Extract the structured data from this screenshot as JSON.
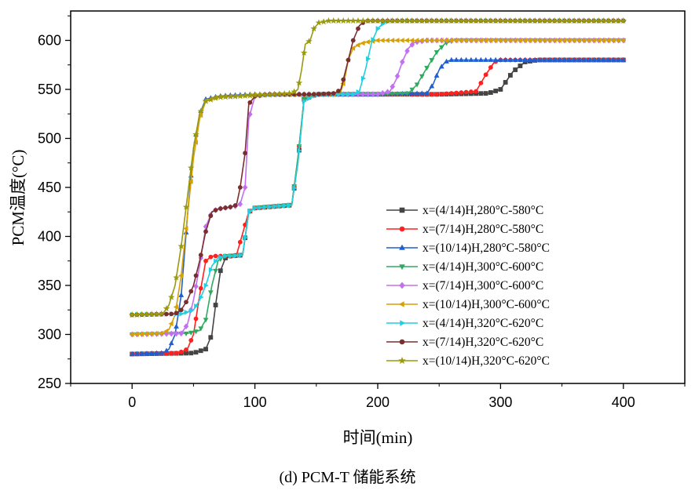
{
  "caption": "(d) PCM-T 储能系统",
  "chart_data": {
    "type": "line",
    "xlabel": "时间(min)",
    "ylabel": "PCM温度(°C)",
    "xlim": [
      -50,
      450
    ],
    "ylim": [
      250,
      630
    ],
    "xticks": [
      0,
      100,
      200,
      300,
      400
    ],
    "yticks": [
      250,
      300,
      350,
      400,
      450,
      500,
      550,
      600
    ],
    "grid": false,
    "legend_position": "lower-right",
    "series": [
      {
        "name": "x=(4/14)H,280°C-580°C",
        "color": "#444444",
        "marker": "square",
        "x": [
          0,
          50,
          60,
          65,
          68,
          72,
          76,
          80,
          90,
          95,
          100,
          110,
          130,
          135,
          140,
          150,
          200,
          250,
          290,
          300,
          310,
          320,
          330,
          400
        ],
        "y": [
          280,
          281,
          285,
          300,
          330,
          365,
          378,
          380,
          381,
          425,
          429,
          430,
          432,
          475,
          540,
          545,
          545,
          545,
          546,
          550,
          568,
          578,
          580,
          580
        ]
      },
      {
        "name": "x=(7/14)H,280°C-580°C",
        "color": "#ff2020",
        "marker": "circle",
        "x": [
          0,
          38,
          45,
          50,
          55,
          60,
          65,
          80,
          85,
          95,
          100,
          110,
          130,
          135,
          140,
          150,
          200,
          250,
          280,
          288,
          295,
          300,
          400
        ],
        "y": [
          280,
          281,
          285,
          300,
          340,
          375,
          380,
          380,
          381,
          425,
          429,
          430,
          432,
          480,
          540,
          545,
          545,
          545,
          548,
          565,
          578,
          580,
          580
        ]
      },
      {
        "name": "x=(10/14)H,280°C-580°C",
        "color": "#1f5fd0",
        "marker": "triangle-up",
        "x": [
          0,
          25,
          30,
          35,
          40,
          45,
          50,
          55,
          60,
          70,
          80,
          100,
          200,
          240,
          245,
          250,
          255,
          260,
          400
        ],
        "y": [
          280,
          281,
          285,
          300,
          340,
          420,
          490,
          525,
          540,
          543,
          544,
          545,
          545,
          546,
          555,
          570,
          578,
          580,
          580
        ]
      },
      {
        "name": "x=(4/14)H,300°C-600°C",
        "color": "#2eaa60",
        "marker": "triangle-down",
        "x": [
          0,
          45,
          55,
          60,
          65,
          70,
          75,
          80,
          90,
          95,
          100,
          110,
          130,
          135,
          140,
          150,
          200,
          225,
          232,
          240,
          248,
          255,
          262,
          400
        ],
        "y": [
          300,
          301,
          304,
          315,
          350,
          375,
          380,
          380,
          381,
          425,
          429,
          430,
          432,
          480,
          540,
          545,
          545,
          546,
          555,
          572,
          588,
          597,
          600,
          600
        ]
      },
      {
        "name": "x=(7/14)H,300°C-600°C",
        "color": "#c070f0",
        "marker": "diamond",
        "x": [
          0,
          40,
          45,
          50,
          55,
          60,
          65,
          70,
          80,
          85,
          88,
          92,
          95,
          100,
          110,
          150,
          200,
          210,
          215,
          220,
          225,
          230,
          240,
          400
        ],
        "y": [
          300,
          301,
          310,
          335,
          370,
          410,
          425,
          428,
          430,
          431,
          433,
          450,
          520,
          543,
          545,
          545,
          545,
          548,
          560,
          578,
          592,
          598,
          600,
          600
        ]
      },
      {
        "name": "x=(10/14)H,300°C-600°C",
        "color": "#d8a000",
        "marker": "triangle-left",
        "x": [
          0,
          25,
          30,
          35,
          40,
          45,
          50,
          55,
          60,
          70,
          100,
          150,
          165,
          170,
          173,
          176,
          180,
          185,
          190,
          200,
          400
        ],
        "y": [
          300,
          301,
          305,
          320,
          360,
          420,
          480,
          520,
          538,
          542,
          544,
          545,
          545,
          548,
          560,
          580,
          592,
          596,
          598,
          600,
          600
        ]
      },
      {
        "name": "x=(4/14)H,320°C-620°C",
        "color": "#20cfe0",
        "marker": "triangle-right",
        "x": [
          0,
          40,
          50,
          55,
          60,
          65,
          70,
          75,
          80,
          90,
          95,
          100,
          110,
          130,
          135,
          140,
          150,
          180,
          185,
          190,
          195,
          200,
          205,
          210,
          400
        ],
        "y": [
          320,
          321,
          325,
          335,
          350,
          370,
          378,
          380,
          380,
          381,
          425,
          429,
          430,
          432,
          475,
          538,
          545,
          545,
          548,
          570,
          598,
          612,
          618,
          620,
          620
        ]
      },
      {
        "name": "x=(7/14)H,320°C-620°C",
        "color": "#7a2f2f",
        "marker": "circle",
        "x": [
          0,
          35,
          40,
          45,
          50,
          55,
          60,
          65,
          70,
          80,
          85,
          88,
          92,
          95,
          100,
          110,
          150,
          165,
          170,
          175,
          180,
          185,
          190,
          400
        ],
        "y": [
          320,
          321,
          325,
          335,
          350,
          375,
          405,
          425,
          428,
          430,
          432,
          450,
          485,
          535,
          543,
          545,
          545,
          546,
          550,
          575,
          600,
          615,
          620,
          620
        ]
      },
      {
        "name": "x=(10/14)H,320°C-620°C",
        "color": "#9a9a10",
        "marker": "star",
        "x": [
          0,
          25,
          30,
          35,
          40,
          45,
          50,
          55,
          60,
          70,
          100,
          130,
          135,
          138,
          141,
          145,
          148,
          152,
          160,
          400
        ],
        "y": [
          320,
          321,
          330,
          350,
          390,
          440,
          490,
          525,
          538,
          542,
          544,
          546,
          550,
          570,
          596,
          600,
          612,
          618,
          620,
          620
        ]
      }
    ]
  }
}
